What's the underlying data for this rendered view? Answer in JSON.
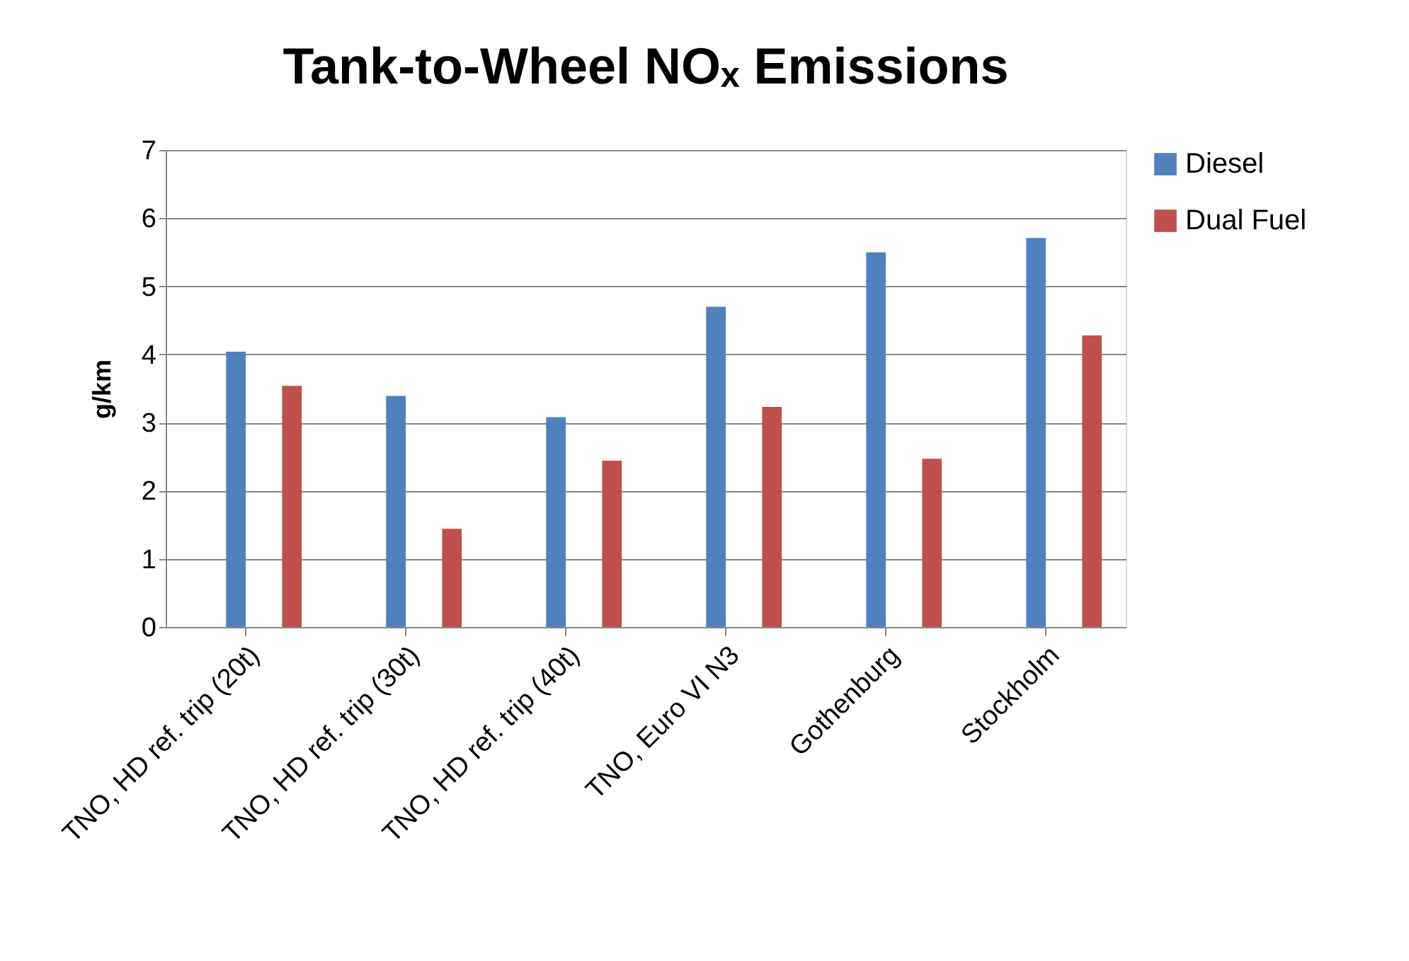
{
  "chart_data": {
    "type": "bar",
    "title": "Tank-to-Wheel NOₓ Emissions",
    "ylabel": "g/km",
    "categories": [
      "TNO, HD ref. trip (20t)",
      "TNO, HD ref. trip (30t)",
      "TNO, HD ref. trip (40t)",
      "TNO, Euro VI N3",
      "Gothenburg",
      "Stockholm"
    ],
    "series": [
      {
        "name": "Diesel",
        "color": "#4f81bd",
        "values": [
          4.04,
          3.39,
          3.08,
          4.7,
          5.5,
          5.71
        ]
      },
      {
        "name": "Dual Fuel",
        "color": "#c0504d",
        "values": [
          3.54,
          1.44,
          2.44,
          3.23,
          2.47,
          4.28
        ]
      }
    ],
    "ylim": [
      0,
      7
    ],
    "yticks": [
      0,
      1,
      2,
      3,
      4,
      5,
      6,
      7
    ],
    "grid": "y",
    "legend": "right"
  }
}
